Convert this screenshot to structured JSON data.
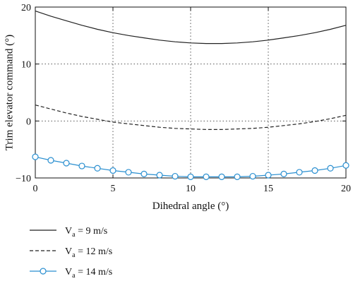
{
  "chart_data": {
    "type": "line",
    "xlabel": "Dihedral angle (°)",
    "ylabel": "Trim elevator command (°)",
    "xlim": [
      0,
      20
    ],
    "ylim": [
      -10,
      20
    ],
    "xticks": [
      0,
      5,
      10,
      15,
      20
    ],
    "yticks": [
      -10,
      0,
      10,
      20
    ],
    "x_tick_labels": [
      "0",
      "5",
      "10",
      "15",
      "20"
    ],
    "y_tick_labels": [
      "−10",
      "0",
      "10",
      "20"
    ],
    "grid": "dotted",
    "legend_position": "below",
    "x": [
      0,
      1,
      2,
      3,
      4,
      5,
      6,
      7,
      8,
      9,
      10,
      11,
      12,
      13,
      14,
      15,
      16,
      17,
      18,
      19,
      20
    ],
    "series": [
      {
        "name": "Va = 9 m/s",
        "legend": {
          "main": "V",
          "sub": "a",
          "rest": " = 9 m/s"
        },
        "style": "solid",
        "color": "#222222",
        "marker": "none",
        "values": [
          19.3,
          18.4,
          17.6,
          16.8,
          16.1,
          15.5,
          15.0,
          14.6,
          14.2,
          13.9,
          13.7,
          13.6,
          13.6,
          13.7,
          13.9,
          14.2,
          14.6,
          15.0,
          15.5,
          16.1,
          16.8
        ]
      },
      {
        "name": "Va = 12 m/s",
        "legend": {
          "main": "V",
          "sub": "a",
          "rest": " = 12 m/s"
        },
        "style": "dashed",
        "color": "#222222",
        "marker": "none",
        "values": [
          2.8,
          2.1,
          1.4,
          0.8,
          0.3,
          -0.2,
          -0.5,
          -0.8,
          -1.1,
          -1.3,
          -1.4,
          -1.5,
          -1.5,
          -1.4,
          -1.3,
          -1.1,
          -0.8,
          -0.5,
          -0.1,
          0.4,
          1.0
        ]
      },
      {
        "name": "Va = 14 m/s",
        "legend": {
          "main": "V",
          "sub": "a",
          "rest": " = 14 m/s"
        },
        "style": "solid",
        "color": "#2a8fd0",
        "marker": "circle",
        "values": [
          -6.3,
          -6.9,
          -7.4,
          -7.9,
          -8.3,
          -8.7,
          -9.0,
          -9.3,
          -9.5,
          -9.7,
          -9.8,
          -9.8,
          -9.8,
          -9.8,
          -9.7,
          -9.5,
          -9.3,
          -9.0,
          -8.7,
          -8.3,
          -7.8
        ]
      }
    ]
  }
}
